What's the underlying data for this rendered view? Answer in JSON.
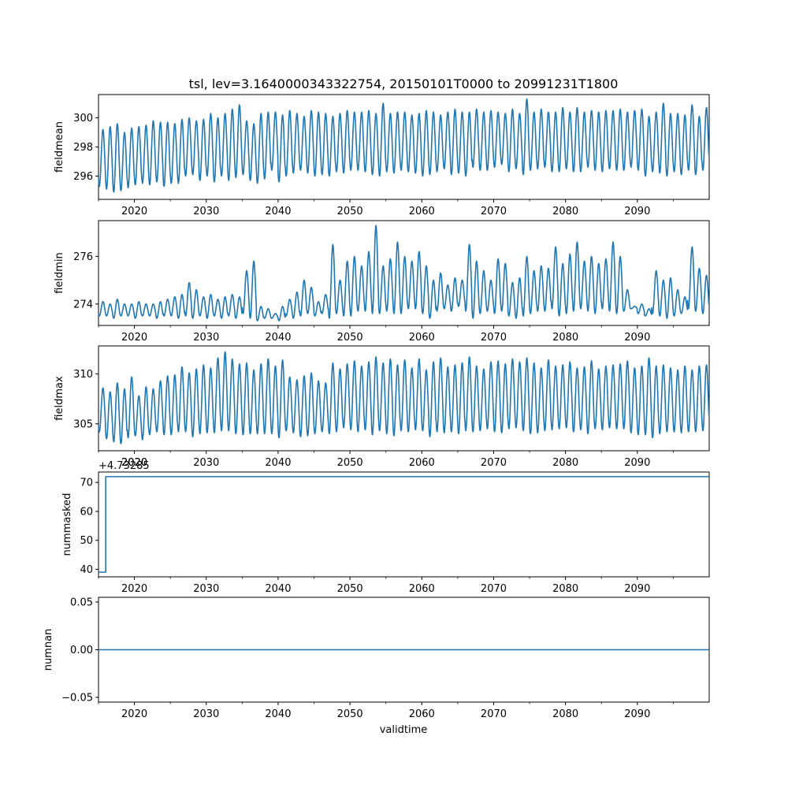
{
  "chart_data": {
    "type": "line",
    "title": "tsl, lev=3.1640000343322754, 20150101T0000 to 20991231T1800",
    "xlabel": "validtime",
    "x_range": [
      2015.0,
      2100.0
    ],
    "x_ticks": [
      "2020",
      "2030",
      "2040",
      "2050",
      "2060",
      "2070",
      "2080",
      "2090"
    ],
    "line_color": "#1f77b4",
    "series": [
      {
        "name": "fieldmean",
        "ylabel": "fieldmean",
        "ylim": [
          294.4,
          301.6
        ],
        "y_ticks": [
          "296",
          "298",
          "300"
        ],
        "description": "strong annual cycle, range ~295-301",
        "annual_min": [
          295.3,
          295.1,
          294.9,
          295.0,
          295.2,
          295.4,
          295.5,
          295.4,
          295.6,
          295.3,
          295.5,
          295.5,
          296.0,
          296.1,
          295.7,
          296.0,
          295.6,
          296.0,
          295.7,
          295.9,
          296.1,
          295.7,
          295.5,
          295.8,
          296.4,
          295.6,
          296.0,
          296.2,
          296.4,
          296.2,
          296.0,
          296.1,
          296.0,
          296.3,
          296.2,
          296.4,
          296.4,
          296.3,
          296.1,
          296.0,
          296.3,
          296.2,
          296.4,
          296.3,
          296.2,
          296.0,
          296.1,
          296.3,
          296.5,
          296.1,
          296.2,
          296.0,
          296.6,
          296.4,
          296.4,
          296.6,
          296.8,
          296.3,
          296.5,
          296.1,
          296.4,
          296.5,
          296.6,
          296.3,
          296.3,
          296.5,
          296.3,
          296.3,
          296.6,
          296.4,
          296.3,
          296.5,
          296.4,
          296.4,
          296.6,
          296.4,
          296.0,
          296.3,
          296.2,
          296.0,
          296.3,
          296.1,
          296.4,
          296.1,
          296.4
        ],
        "annual_max": [
          299.2,
          299.4,
          299.6,
          299.0,
          299.3,
          299.4,
          299.5,
          299.8,
          299.7,
          299.7,
          299.6,
          299.9,
          300.0,
          299.8,
          299.9,
          300.3,
          300.0,
          300.3,
          300.6,
          300.9,
          299.8,
          299.6,
          300.3,
          300.4,
          300.4,
          300.2,
          300.5,
          300.3,
          300.1,
          300.5,
          300.4,
          300.3,
          300.1,
          300.3,
          300.5,
          300.4,
          300.4,
          300.5,
          300.3,
          301.0,
          300.3,
          300.4,
          300.4,
          300.2,
          300.3,
          300.5,
          300.4,
          300.2,
          300.4,
          300.6,
          300.4,
          300.4,
          300.6,
          300.4,
          300.5,
          300.4,
          300.3,
          300.6,
          300.3,
          301.3,
          300.4,
          300.6,
          300.4,
          300.4,
          300.7,
          300.4,
          300.7,
          300.4,
          300.5,
          300.4,
          300.5,
          300.5,
          300.6,
          300.4,
          300.5,
          300.6,
          300.1,
          300.4,
          301.0,
          300.3,
          300.3,
          300.2,
          300.9,
          300.1,
          300.7
        ]
      },
      {
        "name": "fieldmin",
        "ylabel": "fieldmin",
        "ylim": [
          273.1,
          277.5
        ],
        "y_ticks": [
          "274",
          "276"
        ],
        "description": "minimum near 273.5, irregular peaks 274-277",
        "annual_min": [
          273.5,
          273.5,
          273.4,
          273.5,
          273.5,
          273.4,
          273.5,
          273.5,
          273.4,
          273.5,
          273.5,
          273.4,
          273.5,
          273.4,
          273.5,
          273.4,
          273.5,
          273.4,
          273.5,
          273.4,
          273.6,
          273.4,
          273.3,
          273.4,
          273.4,
          273.3,
          273.5,
          273.4,
          273.5,
          273.6,
          273.5,
          273.6,
          273.4,
          273.6,
          273.5,
          273.5,
          273.7,
          273.7,
          273.6,
          273.6,
          273.7,
          273.6,
          273.6,
          273.8,
          273.8,
          273.6,
          273.4,
          273.7,
          273.8,
          273.7,
          273.9,
          273.7,
          273.4,
          273.6,
          273.7,
          273.6,
          273.7,
          273.5,
          273.4,
          273.5,
          273.6,
          273.7,
          273.7,
          273.8,
          273.5,
          273.6,
          273.7,
          273.8,
          273.7,
          273.6,
          273.8,
          273.7,
          273.6,
          273.7,
          273.8,
          273.6,
          273.5,
          273.6,
          273.5,
          273.4,
          273.5,
          273.6,
          273.8,
          273.7,
          273.6
        ],
        "annual_max": [
          274.1,
          274.0,
          274.2,
          274.0,
          274.0,
          274.1,
          274.0,
          274.0,
          274.1,
          274.2,
          274.3,
          274.4,
          274.9,
          274.6,
          274.3,
          274.4,
          274.2,
          274.3,
          274.4,
          274.3,
          275.4,
          275.8,
          273.9,
          273.8,
          273.6,
          273.9,
          274.2,
          274.5,
          275.0,
          274.7,
          274.1,
          274.4,
          276.5,
          275.0,
          275.8,
          276.0,
          275.6,
          276.2,
          277.3,
          275.6,
          275.9,
          276.6,
          276.0,
          275.8,
          276.2,
          275.6,
          275.0,
          275.3,
          274.8,
          275.1,
          275.0,
          276.5,
          275.8,
          275.4,
          275.0,
          275.9,
          275.7,
          274.9,
          275.1,
          276.0,
          275.4,
          275.6,
          275.5,
          276.4,
          275.7,
          276.1,
          276.6,
          275.8,
          276.0,
          275.7,
          275.9,
          276.6,
          276.0,
          274.6,
          273.9,
          274.0,
          273.8,
          275.4,
          275.0,
          275.1,
          274.6,
          274.3,
          276.4,
          275.5,
          275.2
        ]
      },
      {
        "name": "fieldmax",
        "ylabel": "fieldmax",
        "ylim": [
          302.3,
          312.8
        ],
        "y_ticks": [
          "305",
          "310"
        ],
        "description": "large annual cycle, range ~303-312",
        "annual_min": [
          304.2,
          303.5,
          303.2,
          303.0,
          303.6,
          303.8,
          303.4,
          303.9,
          304.2,
          303.9,
          303.9,
          304.2,
          304.2,
          303.7,
          304.0,
          304.1,
          304.1,
          304.3,
          304.3,
          304.0,
          303.9,
          304.0,
          304.0,
          304.0,
          304.0,
          303.6,
          304.3,
          304.1,
          303.7,
          303.8,
          304.0,
          304.2,
          304.0,
          304.2,
          304.6,
          304.4,
          304.2,
          304.4,
          303.9,
          304.3,
          304.0,
          303.8,
          304.3,
          304.2,
          304.4,
          304.3,
          303.7,
          304.2,
          304.1,
          304.2,
          304.0,
          304.3,
          304.2,
          304.3,
          304.5,
          304.2,
          304.1,
          304.5,
          304.6,
          304.3,
          304.0,
          304.1,
          304.3,
          304.4,
          304.5,
          304.6,
          304.2,
          304.4,
          304.0,
          304.5,
          304.4,
          304.6,
          304.5,
          304.5,
          304.1,
          303.9,
          303.9,
          303.6,
          304.0,
          304.2,
          304.2,
          304.1,
          304.2,
          304.2,
          304.3
        ],
        "annual_max": [
          308.6,
          308.2,
          309.1,
          308.5,
          309.7,
          307.8,
          308.7,
          308.5,
          309.3,
          309.8,
          309.9,
          310.7,
          310.1,
          310.5,
          310.9,
          310.6,
          311.6,
          312.2,
          311.5,
          311.0,
          311.1,
          310.4,
          311.0,
          311.5,
          310.8,
          311.4,
          309.7,
          309.4,
          309.8,
          310.1,
          309.3,
          309.1,
          311.1,
          310.5,
          311.0,
          311.3,
          310.8,
          311.2,
          311.7,
          311.1,
          311.5,
          310.9,
          311.4,
          310.6,
          311.5,
          310.4,
          311.2,
          311.6,
          310.7,
          310.9,
          311.1,
          311.7,
          310.8,
          310.5,
          311.2,
          311.3,
          311.0,
          311.5,
          311.2,
          311.6,
          311.1,
          310.6,
          311.4,
          310.8,
          310.9,
          311.2,
          310.6,
          310.7,
          311.3,
          310.5,
          310.8,
          310.9,
          311.0,
          311.3,
          310.6,
          310.8,
          311.6,
          310.8,
          310.9,
          310.6,
          310.4,
          310.8,
          310.4,
          310.8,
          310.9
        ]
      },
      {
        "name": "nummasked",
        "ylabel": "nummasked",
        "ylim": [
          37.4,
          73.6
        ],
        "y_ticks": [
          "40",
          "50",
          "60",
          "70"
        ],
        "offset_text": "+4.73285",
        "overlap_tick_text": "2020",
        "step_x": 2016.0,
        "values_before": 39,
        "values_after": 72
      },
      {
        "name": "numnan",
        "ylabel": "numnan",
        "ylim": [
          -0.055,
          0.055
        ],
        "y_ticks": [
          "−0.05",
          "0.00",
          "0.05"
        ],
        "constant": 0
      }
    ]
  }
}
